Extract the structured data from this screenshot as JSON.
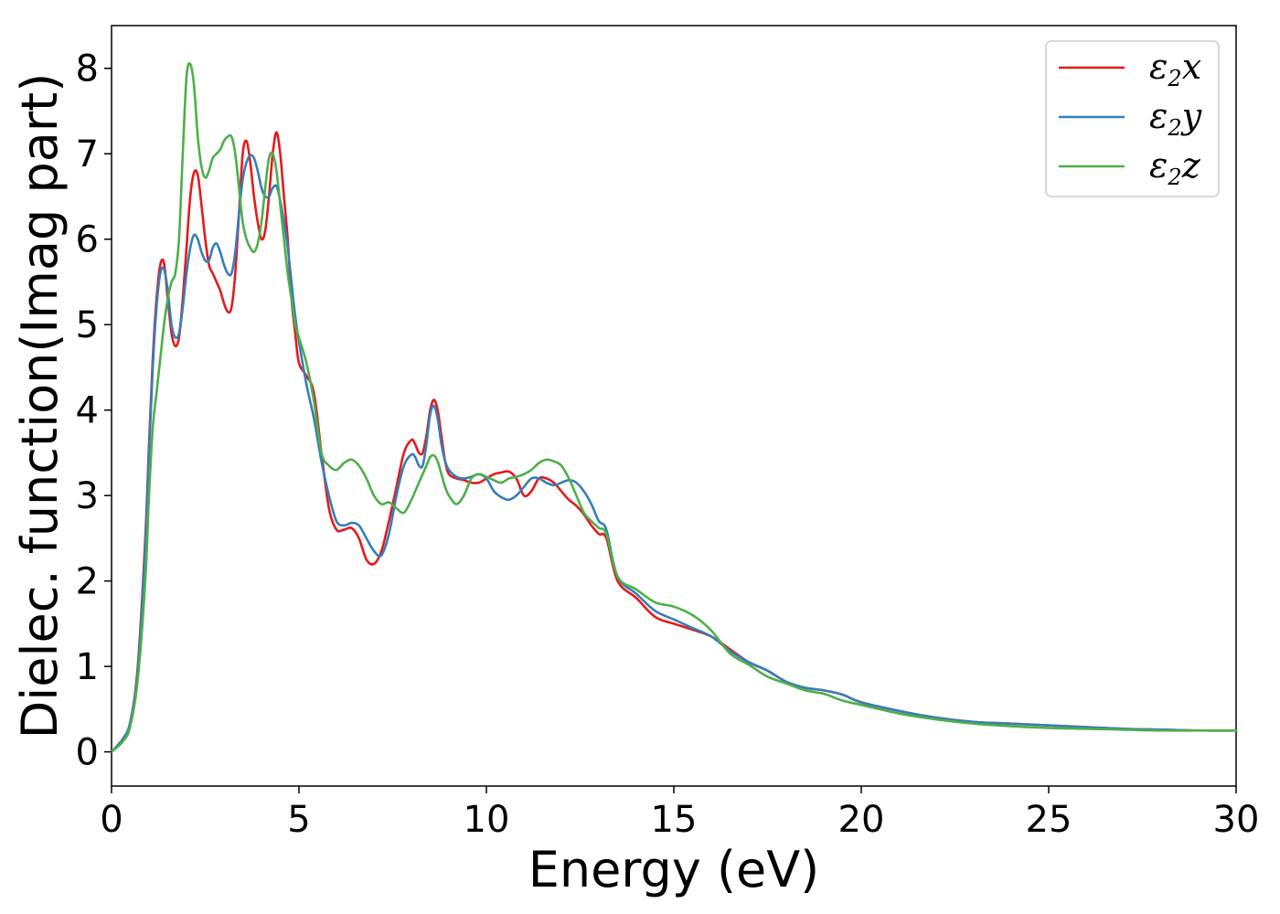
{
  "chart_data": {
    "type": "line",
    "xlabel": "Energy (eV)",
    "ylabel": "Dielec. function(Imag part)",
    "xlim": [
      0,
      30
    ],
    "ylim": [
      -0.4,
      8.5
    ],
    "xticks": [
      0,
      5,
      10,
      15,
      20,
      25,
      30
    ],
    "yticks": [
      0,
      1,
      2,
      3,
      4,
      5,
      6,
      7,
      8
    ],
    "grid": false,
    "legend_position": "top-right",
    "series": [
      {
        "name": "ε2x",
        "legend": {
          "base": "ε",
          "sub": "2",
          "suffix": "x"
        },
        "color": "#e41a1c",
        "x": [
          0,
          0.3,
          0.5,
          0.7,
          0.9,
          1.0,
          1.1,
          1.2,
          1.3,
          1.4,
          1.5,
          1.6,
          1.7,
          1.8,
          1.9,
          2.0,
          2.1,
          2.2,
          2.3,
          2.4,
          2.5,
          2.6,
          2.7,
          2.8,
          2.9,
          3.0,
          3.1,
          3.2,
          3.3,
          3.4,
          3.5,
          3.6,
          3.7,
          3.8,
          3.9,
          4.0,
          4.1,
          4.2,
          4.3,
          4.4,
          4.5,
          4.6,
          4.7,
          4.8,
          4.9,
          5.0,
          5.2,
          5.4,
          5.6,
          5.8,
          6.0,
          6.2,
          6.4,
          6.6,
          6.8,
          7.0,
          7.2,
          7.4,
          7.6,
          7.8,
          8.0,
          8.1,
          8.2,
          8.3,
          8.4,
          8.5,
          8.6,
          8.7,
          8.8,
          8.9,
          9.0,
          9.2,
          9.4,
          9.6,
          9.8,
          10.0,
          10.2,
          10.4,
          10.6,
          10.8,
          11.0,
          11.2,
          11.4,
          11.6,
          11.8,
          12.0,
          12.2,
          12.4,
          12.6,
          12.8,
          13.0,
          13.2,
          13.5,
          14.0,
          14.5,
          15.0,
          15.5,
          16.0,
          16.5,
          17.0,
          17.5,
          18.0,
          18.5,
          19.0,
          19.5,
          20.0,
          21.0,
          22.0,
          23.0,
          24.0,
          25.0,
          26.0,
          27.0,
          28.0,
          29.0,
          30.0
        ],
        "y": [
          0.0,
          0.15,
          0.35,
          1.0,
          2.5,
          3.6,
          4.6,
          5.3,
          5.7,
          5.72,
          5.3,
          4.9,
          4.75,
          4.85,
          5.3,
          5.9,
          6.5,
          6.78,
          6.75,
          6.4,
          6.0,
          5.7,
          5.6,
          5.5,
          5.4,
          5.25,
          5.15,
          5.2,
          5.6,
          6.3,
          7.0,
          7.15,
          6.9,
          6.5,
          6.2,
          6.0,
          6.1,
          6.5,
          7.0,
          7.25,
          7.0,
          6.5,
          6.0,
          5.3,
          4.9,
          4.55,
          4.4,
          4.2,
          3.5,
          2.85,
          2.6,
          2.6,
          2.62,
          2.5,
          2.25,
          2.2,
          2.35,
          2.7,
          3.1,
          3.5,
          3.65,
          3.6,
          3.5,
          3.5,
          3.7,
          4.0,
          4.12,
          4.0,
          3.7,
          3.4,
          3.25,
          3.2,
          3.18,
          3.15,
          3.15,
          3.2,
          3.25,
          3.27,
          3.28,
          3.2,
          3.0,
          3.05,
          3.2,
          3.2,
          3.15,
          3.05,
          2.95,
          2.88,
          2.78,
          2.65,
          2.55,
          2.5,
          2.0,
          1.8,
          1.58,
          1.5,
          1.43,
          1.35,
          1.2,
          1.05,
          0.95,
          0.82,
          0.75,
          0.72,
          0.67,
          0.58,
          0.48,
          0.4,
          0.35,
          0.33,
          0.31,
          0.29,
          0.27,
          0.26,
          0.25,
          0.25
        ]
      },
      {
        "name": "ε2y",
        "legend": {
          "base": "ε",
          "sub": "2",
          "suffix": "y"
        },
        "color": "#377eb8",
        "x": [
          0,
          0.3,
          0.5,
          0.7,
          0.9,
          1.0,
          1.1,
          1.2,
          1.3,
          1.4,
          1.5,
          1.6,
          1.7,
          1.8,
          1.9,
          2.0,
          2.1,
          2.2,
          2.3,
          2.4,
          2.5,
          2.6,
          2.7,
          2.8,
          2.9,
          3.0,
          3.1,
          3.2,
          3.3,
          3.4,
          3.5,
          3.6,
          3.7,
          3.8,
          3.9,
          4.0,
          4.1,
          4.2,
          4.3,
          4.4,
          4.5,
          4.6,
          4.7,
          4.8,
          4.9,
          5.0,
          5.2,
          5.4,
          5.6,
          5.8,
          6.0,
          6.2,
          6.4,
          6.6,
          6.8,
          7.0,
          7.2,
          7.4,
          7.6,
          7.8,
          8.0,
          8.1,
          8.2,
          8.3,
          8.4,
          8.5,
          8.6,
          8.7,
          8.8,
          8.9,
          9.0,
          9.2,
          9.4,
          9.6,
          9.8,
          10.0,
          10.2,
          10.4,
          10.6,
          10.8,
          11.0,
          11.2,
          11.4,
          11.6,
          11.8,
          12.0,
          12.2,
          12.4,
          12.6,
          12.8,
          13.0,
          13.2,
          13.5,
          14.0,
          14.5,
          15.0,
          15.5,
          16.0,
          16.5,
          17.0,
          17.5,
          18.0,
          18.5,
          19.0,
          19.5,
          20.0,
          21.0,
          22.0,
          23.0,
          24.0,
          25.0,
          26.0,
          27.0,
          28.0,
          29.0,
          30.0
        ],
        "y": [
          0.0,
          0.15,
          0.35,
          0.95,
          2.4,
          3.5,
          4.5,
          5.2,
          5.6,
          5.65,
          5.4,
          5.0,
          4.85,
          4.9,
          5.2,
          5.6,
          5.9,
          6.05,
          6.0,
          5.85,
          5.75,
          5.75,
          5.9,
          5.95,
          5.85,
          5.7,
          5.6,
          5.6,
          5.85,
          6.3,
          6.7,
          6.9,
          6.98,
          6.95,
          6.8,
          6.6,
          6.5,
          6.5,
          6.6,
          6.62,
          6.45,
          6.2,
          5.9,
          5.5,
          5.1,
          4.8,
          4.3,
          3.9,
          3.4,
          3.0,
          2.7,
          2.65,
          2.68,
          2.65,
          2.5,
          2.35,
          2.3,
          2.55,
          3.0,
          3.35,
          3.48,
          3.45,
          3.35,
          3.35,
          3.6,
          3.95,
          4.05,
          3.9,
          3.6,
          3.4,
          3.3,
          3.22,
          3.2,
          3.22,
          3.25,
          3.2,
          3.05,
          2.98,
          2.95,
          3.0,
          3.1,
          3.2,
          3.2,
          3.15,
          3.12,
          3.15,
          3.18,
          3.15,
          3.05,
          2.9,
          2.7,
          2.6,
          2.05,
          1.85,
          1.65,
          1.55,
          1.45,
          1.35,
          1.18,
          1.05,
          0.95,
          0.82,
          0.75,
          0.72,
          0.67,
          0.58,
          0.48,
          0.4,
          0.35,
          0.33,
          0.31,
          0.29,
          0.27,
          0.26,
          0.25,
          0.25
        ]
      },
      {
        "name": "ε2z",
        "legend": {
          "base": "ε",
          "sub": "2",
          "suffix": "z"
        },
        "color": "#4daf4a",
        "x": [
          0,
          0.3,
          0.5,
          0.7,
          0.9,
          1.0,
          1.1,
          1.2,
          1.3,
          1.4,
          1.5,
          1.6,
          1.7,
          1.8,
          1.9,
          2.0,
          2.1,
          2.2,
          2.3,
          2.4,
          2.5,
          2.6,
          2.7,
          2.8,
          2.9,
          3.0,
          3.1,
          3.2,
          3.3,
          3.4,
          3.5,
          3.6,
          3.7,
          3.8,
          3.9,
          4.0,
          4.1,
          4.2,
          4.3,
          4.4,
          4.5,
          4.6,
          4.7,
          4.8,
          4.9,
          5.0,
          5.2,
          5.4,
          5.6,
          5.8,
          6.0,
          6.2,
          6.4,
          6.6,
          6.8,
          7.0,
          7.2,
          7.4,
          7.6,
          7.8,
          8.0,
          8.1,
          8.2,
          8.3,
          8.4,
          8.5,
          8.6,
          8.7,
          8.8,
          8.9,
          9.0,
          9.2,
          9.4,
          9.6,
          9.8,
          10.0,
          10.2,
          10.4,
          10.6,
          10.8,
          11.0,
          11.2,
          11.4,
          11.6,
          11.8,
          12.0,
          12.2,
          12.4,
          12.6,
          12.8,
          13.0,
          13.2,
          13.5,
          14.0,
          14.5,
          15.0,
          15.5,
          16.0,
          16.5,
          17.0,
          17.5,
          18.0,
          18.5,
          19.0,
          19.5,
          20.0,
          21.0,
          22.0,
          23.0,
          24.0,
          25.0,
          26.0,
          27.0,
          28.0,
          29.0,
          30.0
        ],
        "y": [
          0.0,
          0.12,
          0.3,
          0.85,
          2.0,
          3.0,
          3.8,
          4.2,
          4.6,
          5.0,
          5.3,
          5.5,
          5.6,
          6.0,
          7.0,
          7.9,
          8.05,
          7.8,
          7.2,
          6.85,
          6.72,
          6.8,
          6.95,
          7.0,
          7.05,
          7.15,
          7.2,
          7.2,
          7.0,
          6.6,
          6.2,
          6.0,
          5.9,
          5.85,
          5.95,
          6.2,
          6.6,
          6.95,
          7.0,
          6.8,
          6.4,
          6.0,
          5.6,
          5.3,
          5.0,
          4.85,
          4.55,
          4.1,
          3.5,
          3.35,
          3.3,
          3.38,
          3.42,
          3.35,
          3.2,
          3.0,
          2.9,
          2.92,
          2.85,
          2.8,
          2.95,
          3.05,
          3.15,
          3.25,
          3.35,
          3.45,
          3.47,
          3.4,
          3.25,
          3.1,
          3.0,
          2.9,
          3.0,
          3.2,
          3.25,
          3.22,
          3.18,
          3.15,
          3.2,
          3.22,
          3.25,
          3.3,
          3.38,
          3.42,
          3.4,
          3.35,
          3.2,
          3.0,
          2.8,
          2.7,
          2.62,
          2.55,
          2.05,
          1.9,
          1.75,
          1.7,
          1.6,
          1.42,
          1.15,
          1.02,
          0.88,
          0.8,
          0.72,
          0.68,
          0.6,
          0.55,
          0.45,
          0.38,
          0.33,
          0.3,
          0.28,
          0.27,
          0.26,
          0.25,
          0.25,
          0.25
        ]
      }
    ]
  }
}
